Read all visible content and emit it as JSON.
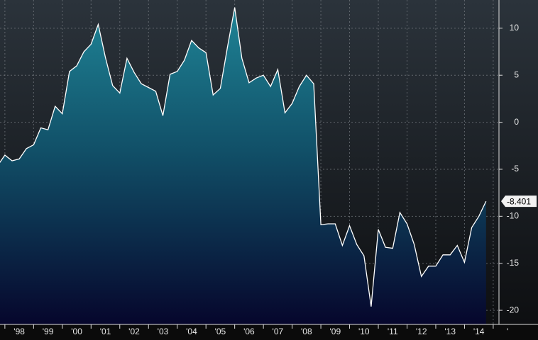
{
  "chart_data": {
    "type": "area",
    "x": [
      1997.75,
      1998.0,
      1998.25,
      1998.5,
      1998.75,
      1999.0,
      1999.25,
      1999.5,
      1999.75,
      2000.0,
      2000.25,
      2000.5,
      2000.75,
      2001.0,
      2001.25,
      2001.5,
      2001.75,
      2002.0,
      2002.25,
      2002.5,
      2002.75,
      2003.0,
      2003.25,
      2003.5,
      2003.75,
      2004.0,
      2004.25,
      2004.5,
      2004.75,
      2005.0,
      2005.25,
      2005.5,
      2005.75,
      2006.0,
      2006.25,
      2006.5,
      2006.75,
      2007.0,
      2007.25,
      2007.5,
      2007.75,
      2008.0,
      2008.25,
      2008.5,
      2008.75,
      2009.0,
      2009.25,
      2009.5,
      2009.75,
      2010.0,
      2010.25,
      2010.5,
      2010.75,
      2011.0,
      2011.25,
      2011.5,
      2011.75,
      2012.0,
      2012.25,
      2012.5,
      2012.75,
      2013.0,
      2013.25,
      2013.5,
      2013.75,
      2014.0,
      2014.25,
      2014.5,
      2014.75
    ],
    "values": [
      -4.6,
      -3.5,
      -4.1,
      -3.9,
      -2.8,
      -2.4,
      -0.6,
      -0.8,
      1.7,
      0.9,
      5.4,
      6.0,
      7.5,
      8.3,
      10.4,
      6.9,
      3.9,
      3.1,
      6.8,
      5.3,
      4.1,
      3.7,
      3.3,
      0.7,
      5.1,
      5.4,
      6.6,
      8.7,
      7.9,
      7.4,
      2.9,
      3.6,
      8.0,
      12.2,
      6.8,
      4.2,
      4.7,
      5.0,
      3.8,
      5.6,
      1.0,
      2.0,
      3.8,
      5.0,
      4.1,
      -10.9,
      -10.8,
      -10.8,
      -13.1,
      -11.0,
      -13.0,
      -14.2,
      -19.6,
      -11.4,
      -13.3,
      -13.4,
      -9.6,
      -10.8,
      -13.0,
      -16.4,
      -15.3,
      -15.3,
      -14.1,
      -14.1,
      -13.1,
      -14.9,
      -11.2,
      -10.0,
      -8.401
    ],
    "color": "#ffffff",
    "xlim": [
      1997.83,
      2015.2
    ],
    "ylim": [
      -21.5,
      13.0
    ],
    "yticks": [
      10,
      5,
      0,
      -5,
      -10,
      -15,
      -20
    ],
    "xticks": [
      {
        "value": 1998,
        "label": "'98"
      },
      {
        "value": 1999,
        "label": "'99"
      },
      {
        "value": 2000,
        "label": "'00"
      },
      {
        "value": 2001,
        "label": "'01"
      },
      {
        "value": 2002,
        "label": "'02"
      },
      {
        "value": 2003,
        "label": "'03"
      },
      {
        "value": 2004,
        "label": "'04"
      },
      {
        "value": 2005,
        "label": "'05"
      },
      {
        "value": 2006,
        "label": "'06"
      },
      {
        "value": 2007,
        "label": "'07"
      },
      {
        "value": 2008,
        "label": "'08"
      },
      {
        "value": 2009,
        "label": "'09"
      },
      {
        "value": 2010,
        "label": "'10"
      },
      {
        "value": 2011,
        "label": "'11"
      },
      {
        "value": 2012,
        "label": "'12"
      },
      {
        "value": 2013,
        "label": "'13"
      },
      {
        "value": 2014,
        "label": "'14"
      },
      {
        "value": 2015,
        "label": "'"
      }
    ],
    "grid": true
  }
}
